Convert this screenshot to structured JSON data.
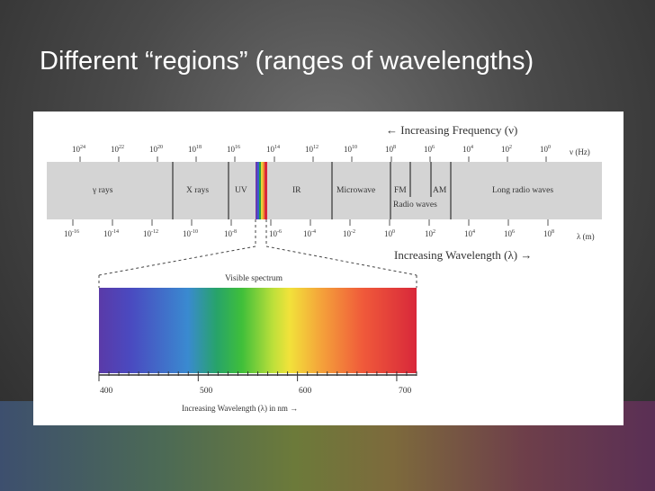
{
  "title": "Different “regions” (ranges of wavelengths)",
  "diagram": {
    "frequency_axis_title": "← Increasing Frequency (ν)",
    "frequency_unit": "ν (Hz)",
    "frequency_exponents": [
      "24",
      "22",
      "20",
      "18",
      "16",
      "14",
      "12",
      "10",
      "8",
      "6",
      "4",
      "2",
      "0"
    ],
    "wavelength_axis_title": "Increasing Wavelength (λ) →",
    "wavelength_unit": "λ (m)",
    "wavelength_exponents": [
      "-16",
      "-14",
      "-12",
      "-10",
      "-8",
      "-6",
      "-4",
      "-2",
      "0",
      "2",
      "4",
      "6",
      "8"
    ],
    "regions": {
      "gamma": "γ rays",
      "xray": "X rays",
      "uv": "UV",
      "ir": "IR",
      "microwave": "Microwave",
      "fm": "FM",
      "am": "AM",
      "radio": "Radio waves",
      "long_radio": "Long radio waves"
    },
    "visible_spectrum_label": "Visible spectrum",
    "nm_ticks": [
      "400",
      "500",
      "600",
      "700"
    ],
    "nm_axis_title": "Increasing Wavelength (λ) in nm →",
    "colors": {
      "band": "#d4d4d4",
      "spectrum": [
        "#5a3aa8",
        "#4a4ac0",
        "#3a8ad0",
        "#27a36a",
        "#3fbf3a",
        "#bfe03a",
        "#f2e23a",
        "#f4a23a",
        "#f05a3a",
        "#d8283a"
      ]
    }
  }
}
